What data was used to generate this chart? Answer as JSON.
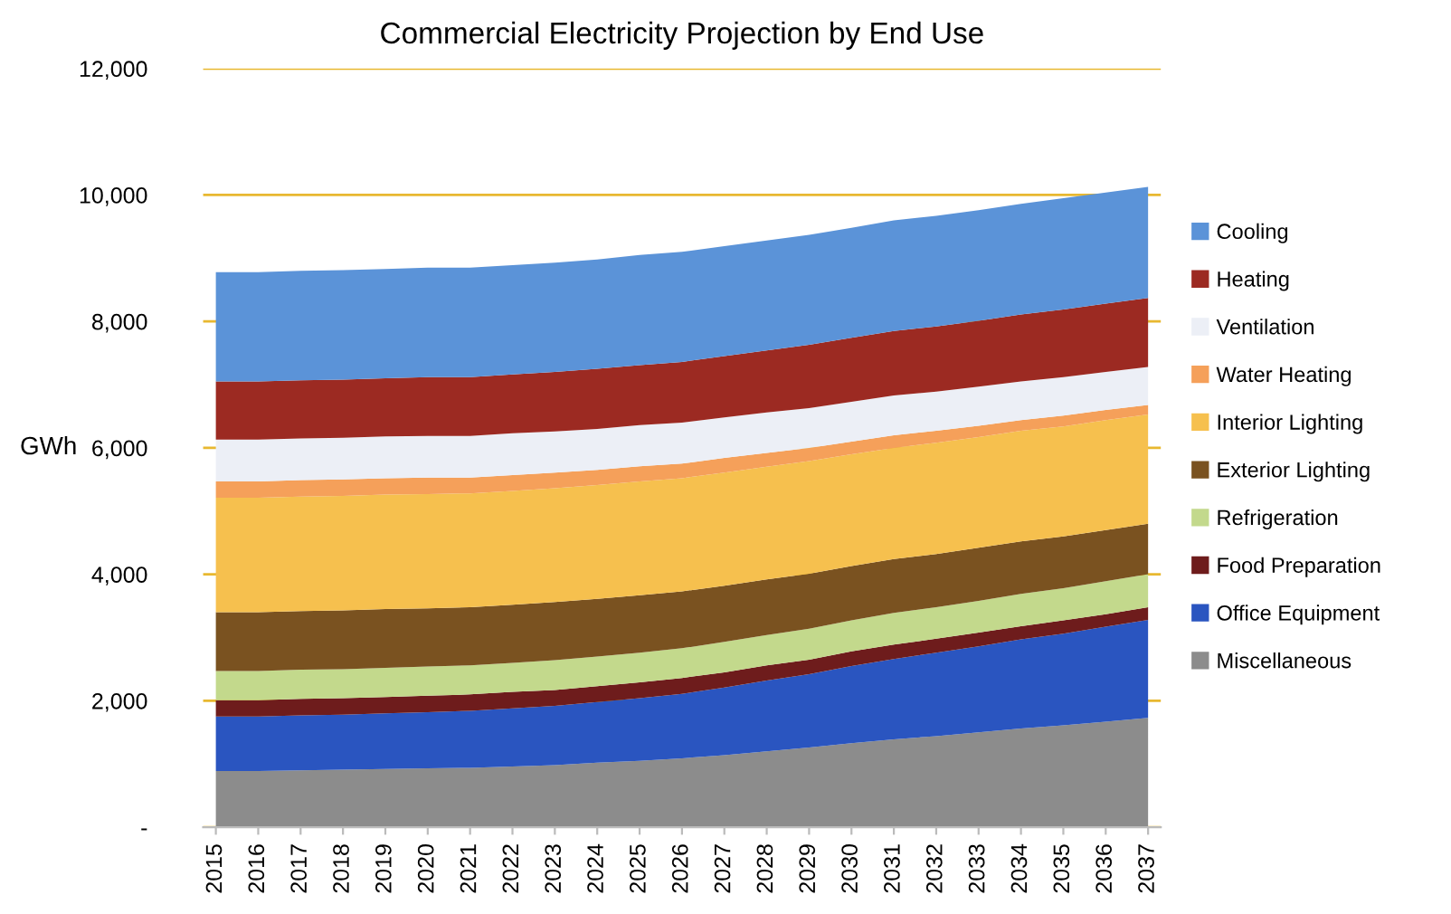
{
  "chart_data": {
    "type": "area",
    "stacked": true,
    "title": "Commercial Electricity Projection by End Use",
    "ylabel": "GWh",
    "categories": [
      "2015",
      "2016",
      "2017",
      "2018",
      "2019",
      "2020",
      "2021",
      "2022",
      "2023",
      "2024",
      "2025",
      "2026",
      "2027",
      "2028",
      "2029",
      "2030",
      "2031",
      "2032",
      "2033",
      "2034",
      "2035",
      "2036",
      "2037"
    ],
    "ylim": [
      0,
      12000
    ],
    "yticks": [
      {
        "value": 0,
        "label": "-"
      },
      {
        "value": 2000,
        "label": "2,000"
      },
      {
        "value": 4000,
        "label": "4,000"
      },
      {
        "value": 6000,
        "label": "6,000"
      },
      {
        "value": 8000,
        "label": "8,000"
      },
      {
        "value": 10000,
        "label": "10,000"
      },
      {
        "value": 12000,
        "label": "12,000"
      }
    ],
    "grid": "y",
    "legend": "right",
    "series": [
      {
        "name": "Miscellaneous",
        "color": "#8c8c8c",
        "values": [
          890,
          890,
          900,
          910,
          920,
          930,
          940,
          960,
          980,
          1020,
          1050,
          1090,
          1140,
          1200,
          1260,
          1330,
          1390,
          1440,
          1500,
          1560,
          1610,
          1670,
          1730
        ]
      },
      {
        "name": "Office Equipment",
        "color": "#2a55c0",
        "values": [
          860,
          860,
          870,
          870,
          880,
          890,
          900,
          920,
          940,
          960,
          990,
          1020,
          1070,
          1120,
          1160,
          1220,
          1270,
          1320,
          1360,
          1410,
          1450,
          1500,
          1550
        ]
      },
      {
        "name": "Food Preparation",
        "color": "#6e1c1c",
        "values": [
          260,
          260,
          260,
          260,
          260,
          260,
          260,
          260,
          250,
          250,
          250,
          250,
          240,
          240,
          230,
          230,
          230,
          220,
          220,
          210,
          210,
          200,
          200
        ]
      },
      {
        "name": "Refrigeration",
        "color": "#c3d98c",
        "values": [
          460,
          460,
          460,
          460,
          460,
          460,
          460,
          460,
          470,
          470,
          470,
          470,
          480,
          480,
          490,
          490,
          500,
          500,
          500,
          510,
          510,
          520,
          520
        ]
      },
      {
        "name": "Exterior Lighting",
        "color": "#7a5220",
        "values": [
          930,
          930,
          930,
          930,
          930,
          920,
          920,
          920,
          920,
          910,
          910,
          900,
          890,
          880,
          870,
          860,
          850,
          840,
          840,
          830,
          820,
          810,
          800
        ]
      },
      {
        "name": "Interior Lighting",
        "color": "#f6c04e",
        "values": [
          1810,
          1810,
          1810,
          1810,
          1810,
          1810,
          1800,
          1800,
          1800,
          1800,
          1800,
          1790,
          1790,
          1780,
          1780,
          1770,
          1760,
          1760,
          1750,
          1750,
          1740,
          1740,
          1730
        ]
      },
      {
        "name": "Water Heating",
        "color": "#f5a05a",
        "values": [
          260,
          260,
          260,
          260,
          260,
          260,
          250,
          250,
          250,
          240,
          240,
          230,
          230,
          220,
          210,
          200,
          200,
          190,
          180,
          170,
          170,
          160,
          150
        ]
      },
      {
        "name": "Ventilation",
        "color": "#eceff6",
        "values": [
          660,
          660,
          660,
          660,
          660,
          660,
          660,
          660,
          650,
          650,
          650,
          650,
          640,
          640,
          630,
          630,
          630,
          620,
          620,
          610,
          610,
          600,
          600
        ]
      },
      {
        "name": "Heating",
        "color": "#9c2a22",
        "values": [
          920,
          920,
          920,
          920,
          920,
          930,
          930,
          930,
          940,
          950,
          950,
          960,
          970,
          980,
          1000,
          1010,
          1020,
          1030,
          1040,
          1060,
          1070,
          1080,
          1090
        ]
      },
      {
        "name": "Cooling",
        "color": "#5b93d8",
        "values": [
          1730,
          1730,
          1730,
          1730,
          1730,
          1730,
          1730,
          1730,
          1730,
          1730,
          1740,
          1740,
          1740,
          1740,
          1740,
          1740,
          1750,
          1750,
          1750,
          1750,
          1760,
          1760,
          1760
        ]
      }
    ]
  }
}
